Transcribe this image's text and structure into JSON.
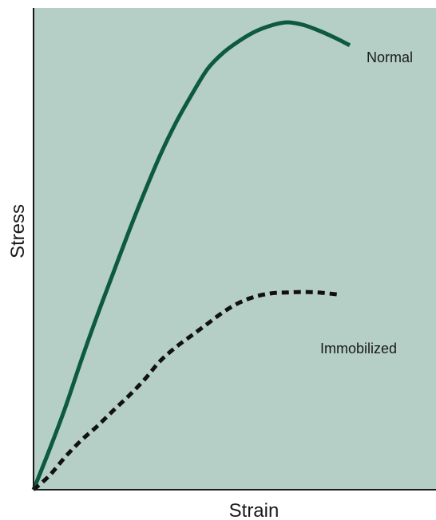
{
  "chart_data": {
    "type": "line",
    "title": "",
    "xlabel": "Strain",
    "ylabel": "Stress",
    "xlim": [
      0,
      100
    ],
    "ylim": [
      0,
      100
    ],
    "grid": false,
    "legend": "inline labels",
    "colors": {
      "plot_background": "#b5cfc6",
      "axis": "#1a1a1a",
      "normal": "#0d5a3e",
      "immobilized": "#111111"
    },
    "series": [
      {
        "name": "Normal",
        "style": "solid",
        "x": [
          0,
          5,
          10,
          15,
          20,
          25,
          30,
          35,
          40,
          45,
          50,
          55,
          60,
          65,
          70,
          75,
          80,
          85,
          90,
          95,
          100
        ],
        "y": [
          0,
          8.5,
          17.5,
          27.5,
          37,
          46,
          55,
          63.5,
          71.5,
          78.5,
          84.5,
          90,
          93.5,
          96,
          98,
          99.3,
          100,
          99.5,
          98.3,
          96.8,
          95.1
        ]
      },
      {
        "name": "Immobilized",
        "style": "dashed",
        "x": [
          0,
          5,
          10,
          15,
          20,
          25,
          30,
          35,
          40,
          45,
          50,
          55,
          60,
          65,
          70,
          75,
          80,
          85,
          90,
          96
        ],
        "y": [
          0,
          3,
          7,
          10.5,
          13.5,
          16.8,
          20,
          23.5,
          27.5,
          30.5,
          33,
          35.5,
          38,
          40,
          41.3,
          42,
          42.2,
          42.3,
          42.2,
          41.8
        ]
      }
    ]
  }
}
